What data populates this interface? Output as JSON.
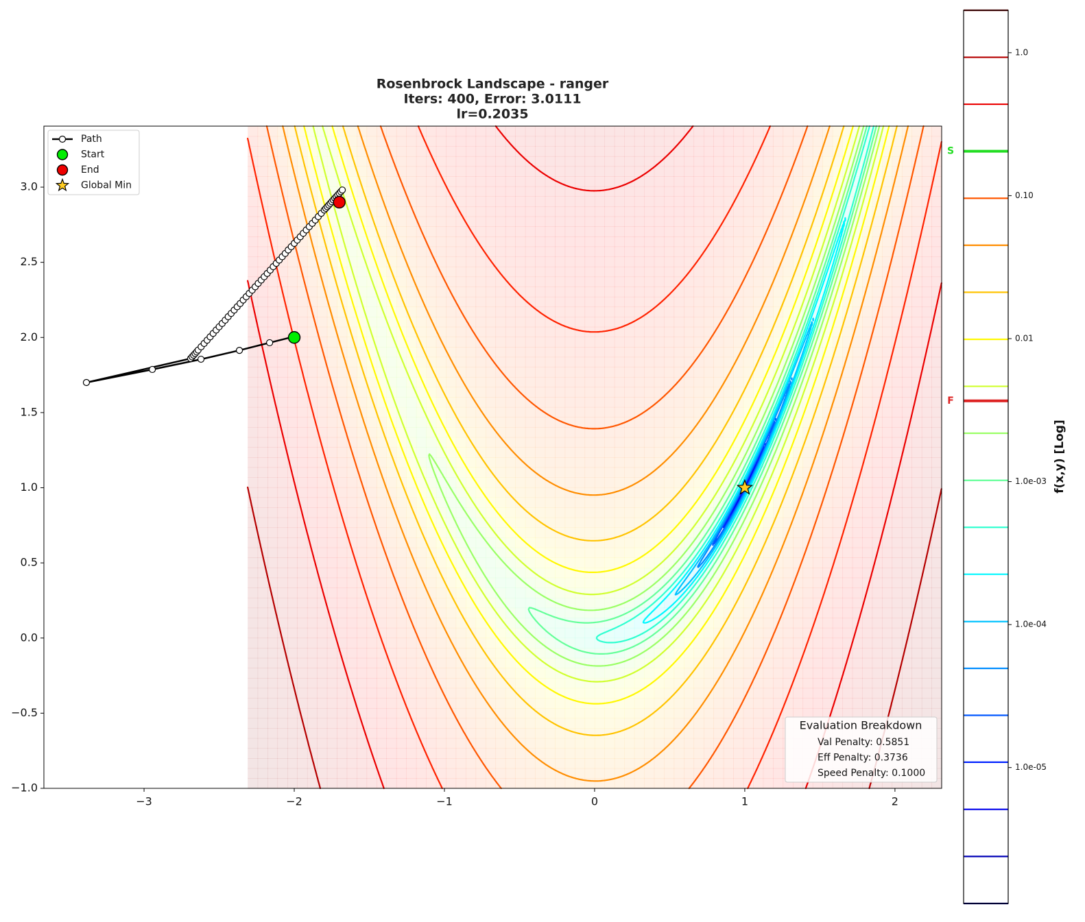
{
  "chart_data": {
    "type": "contour",
    "function": "rosenbrock",
    "title": [
      "Rosenbrock Landscape - ranger",
      "Iters: 400, Error: 3.0111",
      "lr=0.2035"
    ],
    "xlim": [
      -3.667,
      2.311
    ],
    "ylim": [
      -1.0,
      3.406
    ],
    "xticks": [
      {
        "value": -3,
        "label": "−3"
      },
      {
        "value": -2,
        "label": "−2"
      },
      {
        "value": -1,
        "label": "−1"
      },
      0,
      1,
      2
    ],
    "yticks": [
      {
        "value": -1.0,
        "label": "−1.0"
      },
      {
        "value": -0.5,
        "label": "−0.5"
      },
      {
        "value": 0.0,
        "label": "0.0"
      },
      {
        "value": 0.5,
        "label": "0.5"
      },
      {
        "value": 1.0,
        "label": "1.0"
      },
      {
        "value": 1.5,
        "label": "1.5"
      },
      {
        "value": 2.0,
        "label": "2.0"
      },
      {
        "value": 2.5,
        "label": "2.5"
      },
      {
        "value": 3.0,
        "label": "3.0"
      }
    ],
    "contour": {
      "xrange": [
        -2.31,
        2.31
      ],
      "cmap": "jet",
      "levels": [
        1.12e-06,
        2.39e-06,
        5.1e-06,
        1.09e-05,
        2.32e-05,
        4.94e-05,
        0.000105,
        0.000225,
        0.000479,
        0.00102,
        0.00218,
        0.00464,
        0.00989,
        0.0211,
        0.045,
        0.0959,
        0.2045,
        0.436,
        0.929,
        1.98
      ]
    },
    "colorbar": {
      "label": "f(x,y) [Log]",
      "log": true,
      "clim": [
        1.12e-06,
        1.98
      ],
      "ticks": [
        {
          "value": 1,
          "label": "1.0"
        },
        {
          "value": 0.1,
          "label": "0.10"
        },
        0.01,
        {
          "value": 0.001,
          "label": "1.0e-03"
        },
        {
          "value": 0.0001,
          "label": "1.0e-04"
        },
        {
          "value": 1e-05,
          "label": "1.0e-05"
        }
      ],
      "markers": [
        {
          "label": "S",
          "value": 0.2045,
          "color": "#22dd22"
        },
        {
          "label": "F",
          "value": 0.00367,
          "color": "#dd2222"
        }
      ]
    },
    "legend": "upper left",
    "series": [
      {
        "name": "Path",
        "color": "#000000",
        "marker": "circle",
        "line": true,
        "x": [
          -2.0,
          -2.164,
          -2.365,
          -2.621,
          -2.945,
          -3.384,
          -2.69,
          -2.68,
          -2.67,
          -2.66,
          -2.65,
          -2.64,
          -2.62,
          -2.6,
          -2.58,
          -2.56,
          -2.54,
          -2.52,
          -2.5,
          -2.48,
          -2.46,
          -2.44,
          -2.42,
          -2.4,
          -2.38,
          -2.36,
          -2.34,
          -2.32,
          -2.3,
          -2.28,
          -2.26,
          -2.24,
          -2.22,
          -2.2,
          -2.18,
          -2.16,
          -2.14,
          -2.12,
          -2.1,
          -2.08,
          -2.06,
          -2.04,
          -2.02,
          -2.0,
          -1.98,
          -1.96,
          -1.94,
          -1.92,
          -1.9,
          -1.88,
          -1.86,
          -1.84,
          -1.82,
          -1.8,
          -1.79,
          -1.78,
          -1.77,
          -1.76,
          -1.75,
          -1.74,
          -1.73,
          -1.72,
          -1.71,
          -1.7,
          -1.69,
          -1.68
        ],
        "y": [
          2.006,
          1.965,
          1.914,
          1.855,
          1.787,
          1.7,
          1.86,
          1.871,
          1.882,
          1.893,
          1.904,
          1.916,
          1.938,
          1.96,
          1.982,
          2.004,
          2.027,
          2.049,
          2.071,
          2.093,
          2.115,
          2.138,
          2.16,
          2.182,
          2.204,
          2.226,
          2.249,
          2.271,
          2.293,
          2.315,
          2.337,
          2.36,
          2.382,
          2.404,
          2.426,
          2.448,
          2.471,
          2.493,
          2.515,
          2.537,
          2.559,
          2.582,
          2.604,
          2.626,
          2.648,
          2.67,
          2.693,
          2.715,
          2.737,
          2.759,
          2.781,
          2.804,
          2.826,
          2.848,
          2.859,
          2.87,
          2.881,
          2.892,
          2.903,
          2.915,
          2.926,
          2.937,
          2.948,
          2.959,
          2.97,
          2.981
        ]
      },
      {
        "name": "Start",
        "color": "#00ee00",
        "marker": "circle",
        "x": [
          -2.0
        ],
        "y": [
          2.0
        ]
      },
      {
        "name": "End",
        "color": "#ee0000",
        "marker": "circle",
        "x": [
          -1.7
        ],
        "y": [
          2.9
        ]
      },
      {
        "name": "Global Min",
        "color": "#ffcc22",
        "marker": "star",
        "x": [
          1.0
        ],
        "y": [
          1.0
        ]
      }
    ],
    "annotation": {
      "title": "Evaluation Breakdown",
      "lines": [
        "Val Penalty: 0.5851",
        "Eff Penalty: 0.3736",
        "Speed Penalty: 0.1000"
      ]
    }
  }
}
